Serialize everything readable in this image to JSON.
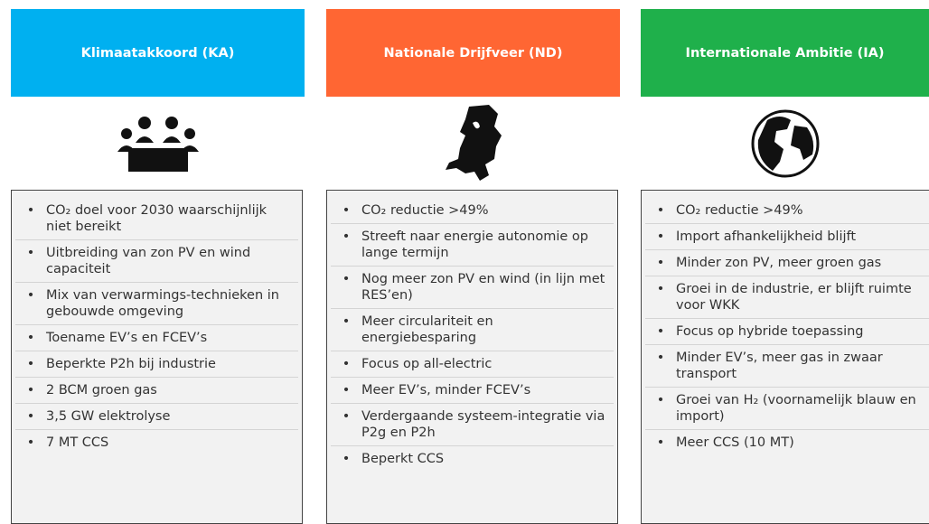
{
  "columns": [
    {
      "title": "Klimaatakkoord (KA)",
      "items": [
        "CO₂ doel voor 2030 waarschijnlijk niet bereikt",
        "Uitbreiding van zon PV en wind capaciteit",
        "Mix van verwarmings-technieken in gebouwde omgeving",
        "Toename EV’s en FCEV’s",
        "Beperkte P2h bij industrie",
        "2 BCM groen gas",
        "3,5 GW elektrolyse",
        "7 MT CCS"
      ]
    },
    {
      "title": "Nationale Drijfveer (ND)",
      "items": [
        "CO₂ reductie >49%",
        "Streeft naar energie autonomie op lange termijn",
        "Nog meer zon PV en wind (in lijn met RES’en)",
        "Meer circulariteit en energiebesparing",
        "Focus op all-electric",
        "Meer EV’s, minder FCEV’s",
        "Verdergaande systeem-integratie via P2g en P2h",
        "Beperkt CCS"
      ]
    },
    {
      "title": "Internationale Ambitie (IA)",
      "items": [
        "CO₂ reductie >49%",
        "Import afhankelijkheid blijft",
        "Minder zon PV, meer groen gas",
        "Groei in de industrie, er blijft ruimte voor WKK",
        "Focus op hybride toepassing",
        "Minder EV’s, meer gas in zwaar transport",
        "Groei van H₂ (voornamelijk blauw en import)",
        "Meer CCS (10 MT)"
      ]
    }
  ]
}
